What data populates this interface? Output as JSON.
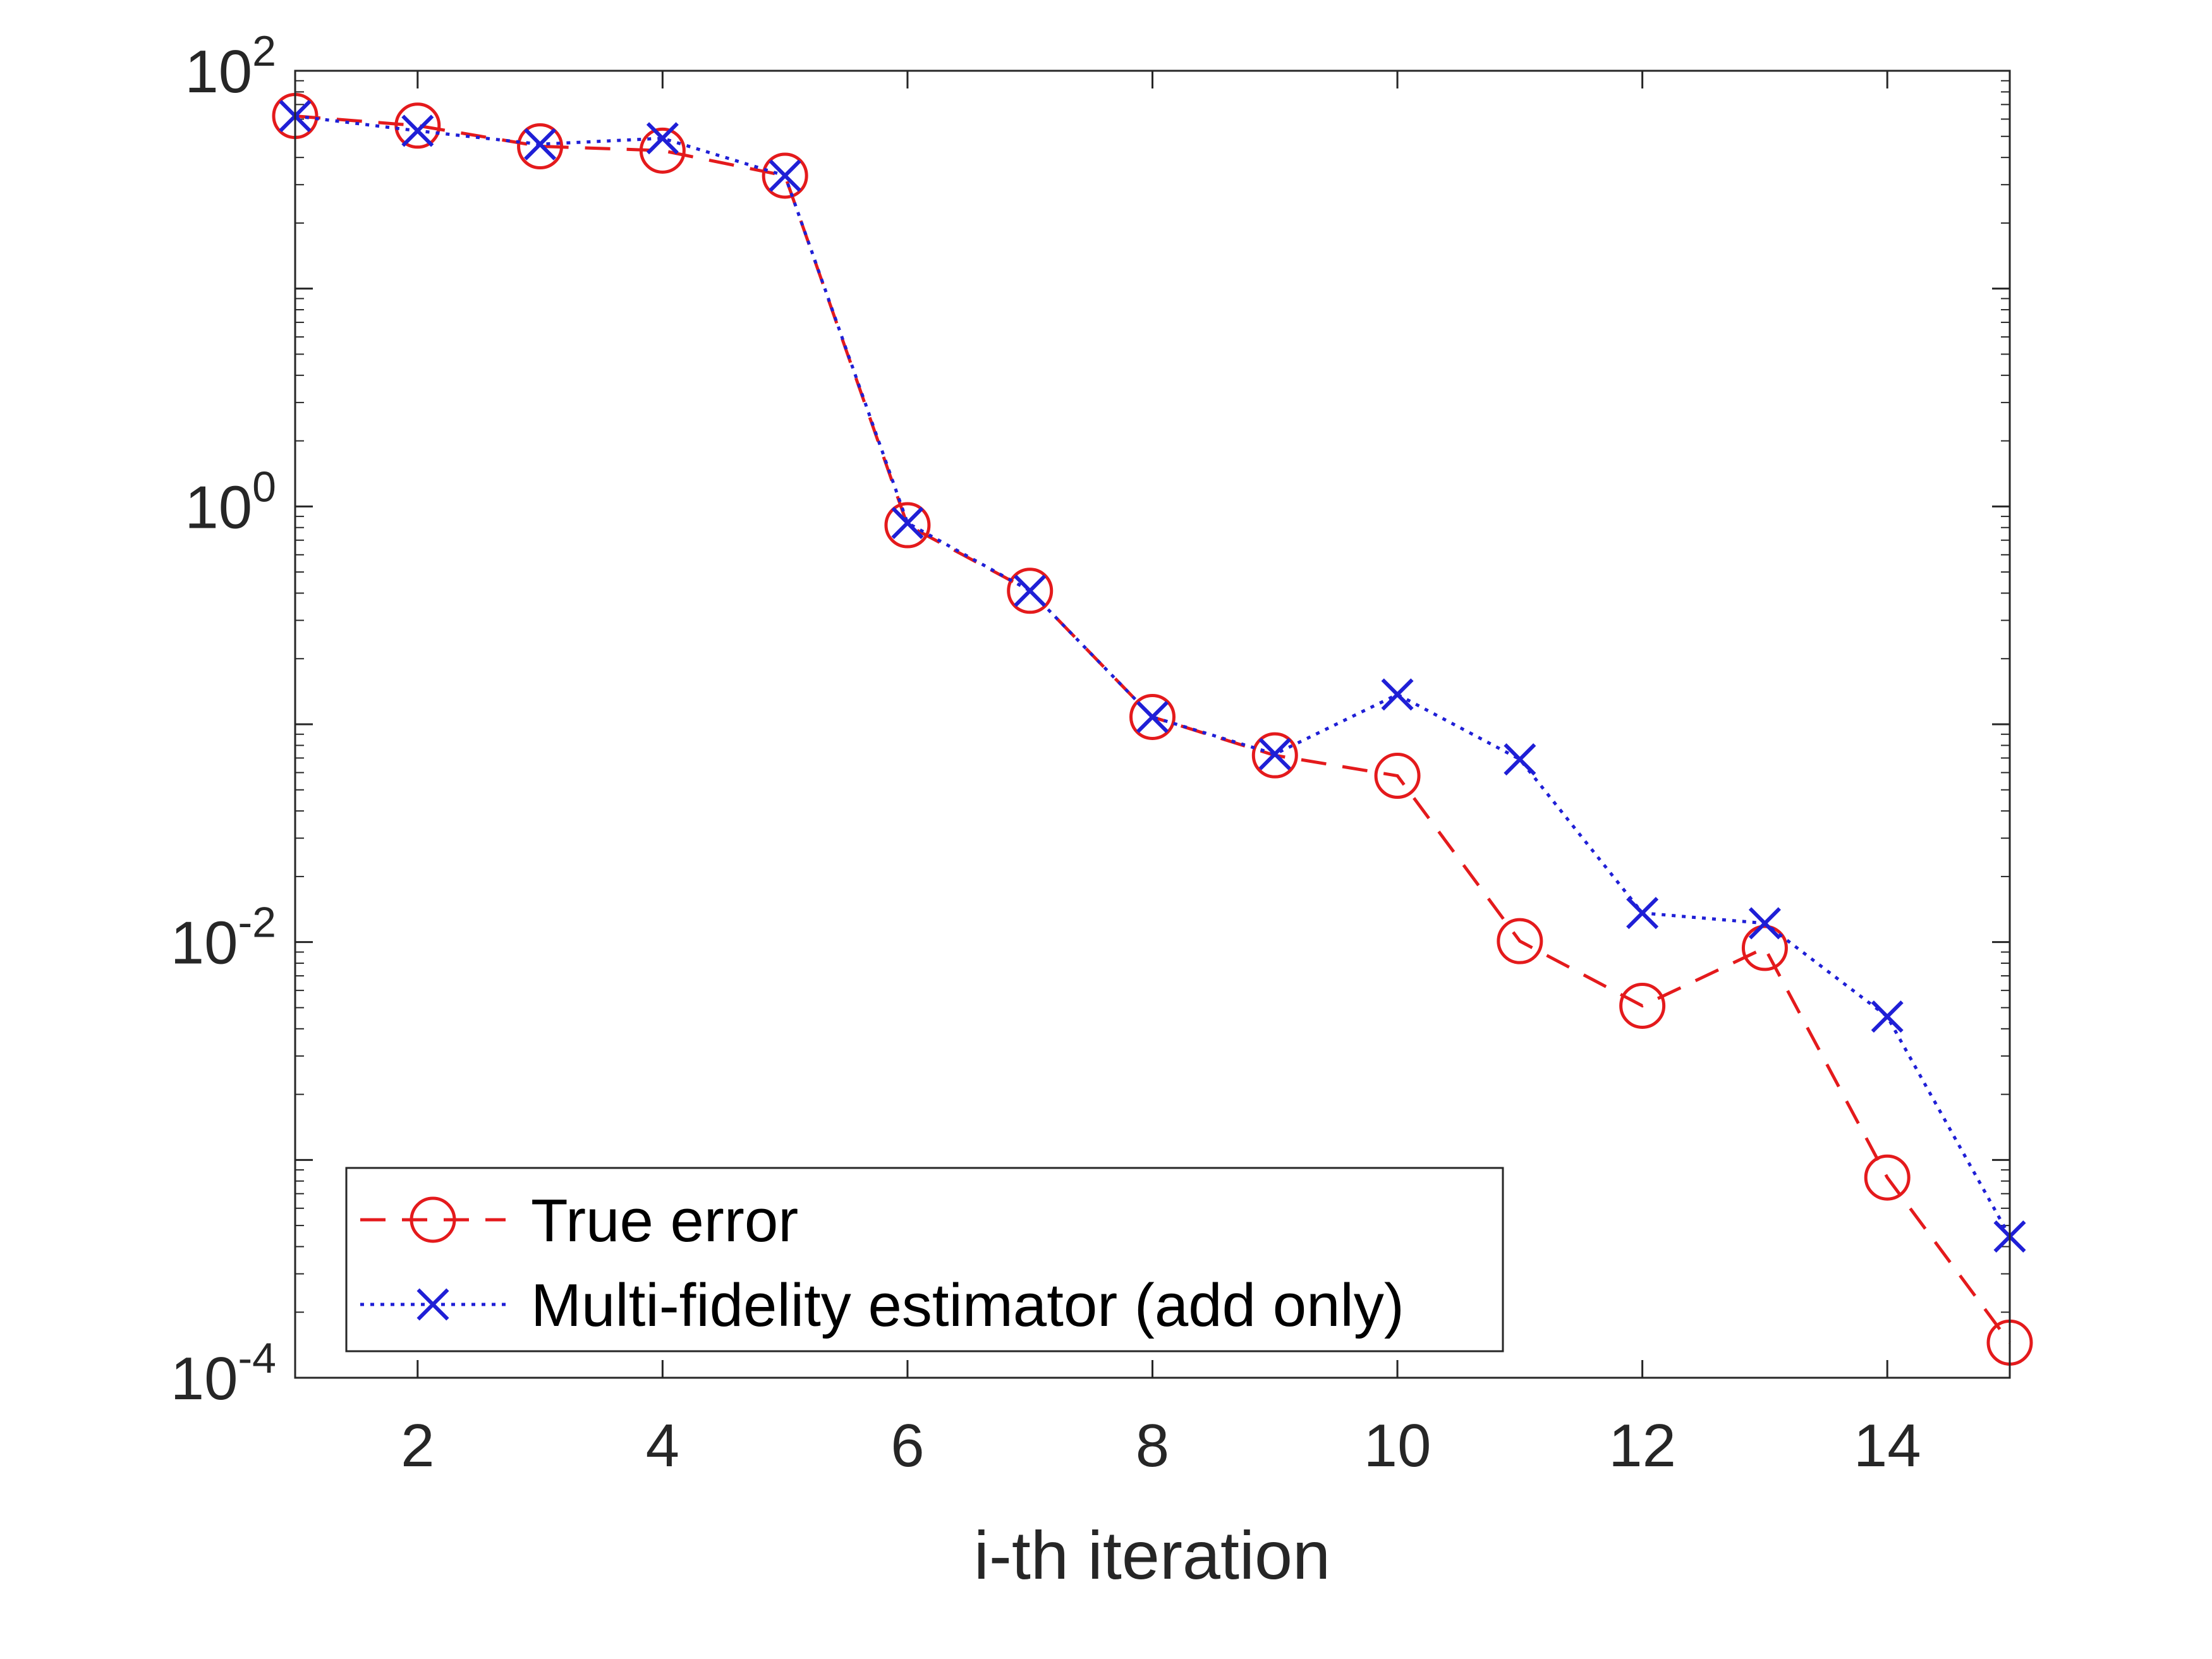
{
  "chart_data": {
    "type": "line",
    "title": "",
    "xlabel": "i-th iteration",
    "ylabel": "",
    "yscale": "log",
    "xlim": [
      1,
      15
    ],
    "ylim": [
      0.0001,
      100
    ],
    "x_ticks": [
      2,
      4,
      6,
      8,
      10,
      12,
      14
    ],
    "y_ticks": [
      {
        "value": 100,
        "base": "10",
        "exp": "2"
      },
      {
        "value": 1,
        "base": "10",
        "exp": "0"
      },
      {
        "value": 0.01,
        "base": "10",
        "exp": "-2"
      },
      {
        "value": 0.0001,
        "base": "10",
        "exp": "-4"
      }
    ],
    "grid": false,
    "legend_position": "bottom-left",
    "x": [
      1,
      2,
      3,
      4,
      5,
      6,
      7,
      8,
      9,
      10,
      11,
      12,
      13,
      14,
      15
    ],
    "series": [
      {
        "name": "True error",
        "color": "#e41a1c",
        "marker": "circle",
        "linestyle": "dashed",
        "values": [
          62,
          56,
          45,
          43,
          33,
          0.82,
          0.41,
          0.108,
          0.072,
          0.058,
          0.0101,
          0.0051,
          0.0094,
          0.00083,
          0.000145
        ]
      },
      {
        "name": "Multi-fidelity estimator (add only)",
        "color": "#1f1fd6",
        "marker": "x",
        "linestyle": "dotted",
        "values": [
          62,
          53,
          46,
          49,
          33,
          0.84,
          0.41,
          0.108,
          0.073,
          0.137,
          0.069,
          0.0136,
          0.0122,
          0.00455,
          0.000445
        ]
      }
    ]
  }
}
